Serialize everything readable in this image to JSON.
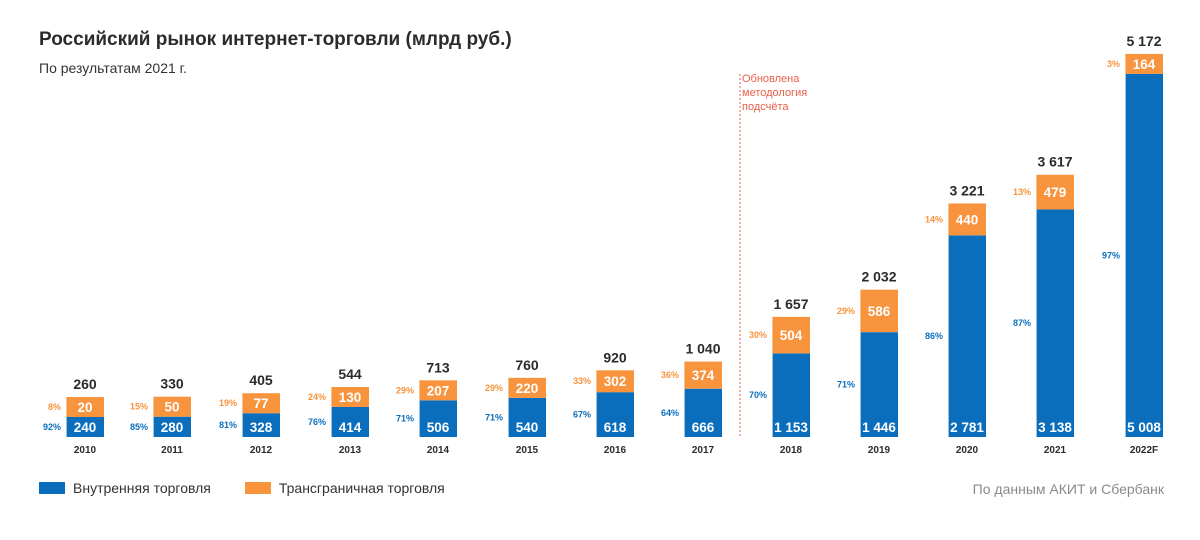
{
  "title": "Российский рынок интернет-торговли (млрд руб.)",
  "subtitle": "По результатам 2021 г.",
  "annotation": [
    "Обновлена",
    "методология",
    "подсчёта"
  ],
  "legend": {
    "domestic": "Внутренняя торговля",
    "crossborder": "Трансграничная торговля"
  },
  "source": "По данным АКИТ и Сбербанк",
  "colors": {
    "domestic": "#0a6ebd",
    "crossborder": "#f7943d",
    "annotation": "#e8604c",
    "text": "#2b2b2b"
  },
  "chart_data": {
    "type": "bar",
    "stacked": true,
    "title": "Российский рынок интернет-торговли (млрд руб.)",
    "categories": [
      "2010",
      "2011",
      "2012",
      "2013",
      "2014",
      "2015",
      "2016",
      "2017",
      "2018",
      "2019",
      "2020",
      "2021",
      "2022F"
    ],
    "series": [
      {
        "name": "Внутренняя торговля",
        "values": [
          240,
          280,
          328,
          414,
          506,
          540,
          618,
          666,
          1153,
          1446,
          2781,
          3138,
          5008
        ],
        "labels": [
          "240",
          "280",
          "328",
          "414",
          "506",
          "540",
          "618",
          "666",
          "1 153",
          "1 446",
          "2 781",
          "3 138",
          "5 008"
        ],
        "shares": [
          "92%",
          "85%",
          "81%",
          "76%",
          "71%",
          "71%",
          "67%",
          "64%",
          "70%",
          "71%",
          "86%",
          "87%",
          "97%"
        ]
      },
      {
        "name": "Трансграничная торговля",
        "values": [
          20,
          50,
          77,
          130,
          207,
          220,
          302,
          374,
          504,
          586,
          440,
          479,
          164
        ],
        "labels": [
          "20",
          "50",
          "77",
          "130",
          "207",
          "220",
          "302",
          "374",
          "504",
          "586",
          "440",
          "479",
          "164"
        ],
        "shares": [
          "8%",
          "15%",
          "19%",
          "24%",
          "29%",
          "29%",
          "33%",
          "36%",
          "30%",
          "29%",
          "14%",
          "13%",
          "3%"
        ]
      }
    ],
    "totals": [
      260,
      330,
      405,
      544,
      713,
      760,
      920,
      1040,
      1657,
      2032,
      3221,
      3617,
      5172
    ],
    "total_labels": [
      "260",
      "330",
      "405",
      "544",
      "713",
      "760",
      "920",
      "1 040",
      "1 657",
      "2 032",
      "3 221",
      "3 617",
      "5 172"
    ],
    "methodology_change_after": "2017"
  }
}
